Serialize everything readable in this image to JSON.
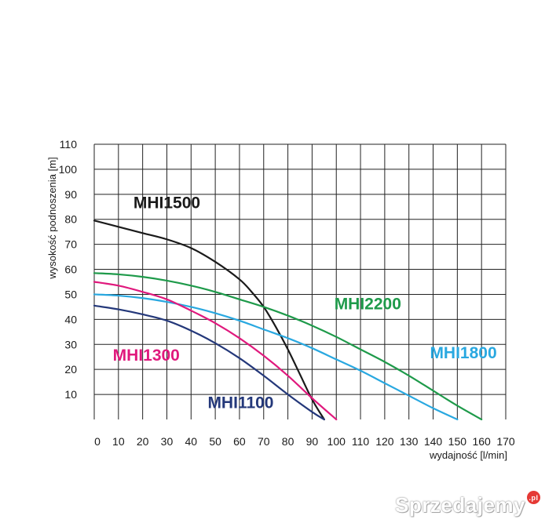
{
  "chart_data": {
    "type": "line",
    "xlabel": "wydajność [l/min]",
    "ylabel": "wysokość podnoszenia [m]",
    "xlim": [
      0,
      170
    ],
    "ylim": [
      0,
      110
    ],
    "xticks": [
      0,
      10,
      20,
      30,
      40,
      50,
      60,
      70,
      80,
      90,
      100,
      110,
      120,
      130,
      140,
      150,
      160,
      170
    ],
    "yticks": [
      10,
      20,
      30,
      40,
      50,
      60,
      70,
      80,
      90,
      100,
      110
    ],
    "grid": true,
    "series": [
      {
        "name": "MHI1500",
        "color": "#1a1a1a",
        "x": [
          0,
          10,
          20,
          30,
          40,
          50,
          60,
          65,
          70,
          75,
          80,
          85,
          90,
          95
        ],
        "y": [
          79.5,
          77,
          74.5,
          72,
          68.5,
          63,
          56,
          51,
          45,
          37,
          28,
          18,
          8,
          0
        ]
      },
      {
        "name": "MHI2200",
        "color": "#1e9a4a",
        "x": [
          0,
          10,
          20,
          30,
          40,
          50,
          60,
          70,
          80,
          90,
          100,
          110,
          120,
          130,
          140,
          150,
          160
        ],
        "y": [
          58.5,
          58,
          57,
          55.5,
          53.5,
          51,
          48,
          45,
          41.5,
          37.5,
          33,
          28,
          23,
          17.5,
          11.5,
          5.5,
          0
        ]
      },
      {
        "name": "MHI1800",
        "color": "#29a8e0",
        "x": [
          0,
          10,
          20,
          30,
          40,
          50,
          60,
          70,
          80,
          90,
          100,
          110,
          120,
          130,
          140,
          150
        ],
        "y": [
          50,
          49.5,
          48.5,
          47,
          45,
          42.5,
          39.5,
          36,
          32.5,
          28.5,
          24,
          19.5,
          14.5,
          9.5,
          4.5,
          0
        ]
      },
      {
        "name": "MHI1300",
        "color": "#e0197d",
        "x": [
          0,
          10,
          20,
          30,
          40,
          50,
          60,
          70,
          80,
          90,
          100
        ],
        "y": [
          55,
          53.5,
          51,
          48,
          43.5,
          38.5,
          32.5,
          25.5,
          17.5,
          8.5,
          0
        ]
      },
      {
        "name": "MHI1100",
        "color": "#24387a",
        "x": [
          0,
          10,
          20,
          30,
          40,
          50,
          60,
          70,
          80,
          90,
          95
        ],
        "y": [
          45.5,
          44,
          42,
          39.5,
          35.5,
          30.5,
          24.5,
          17.5,
          10,
          3,
          0
        ]
      }
    ],
    "annotations": [
      {
        "text": "MHI1500",
        "color": "#1a1a1a",
        "x": 30,
        "y": 84.5,
        "anchor": "middle"
      },
      {
        "text": "MHI2200",
        "color": "#1e9a4a",
        "x": 113,
        "y": 44,
        "anchor": "middle"
      },
      {
        "text": "MHI1800",
        "color": "#29a8e0",
        "x": 152.5,
        "y": 24.5,
        "anchor": "middle"
      },
      {
        "text": "MHI1300",
        "color": "#e0197d",
        "x": 21.5,
        "y": 23.5,
        "anchor": "middle"
      },
      {
        "text": "MHI1100",
        "color": "#24387a",
        "x": 60.5,
        "y": 4.5,
        "anchor": "middle"
      }
    ]
  },
  "watermark": {
    "text": "Sprzedajemy",
    "badge": ".pl"
  }
}
